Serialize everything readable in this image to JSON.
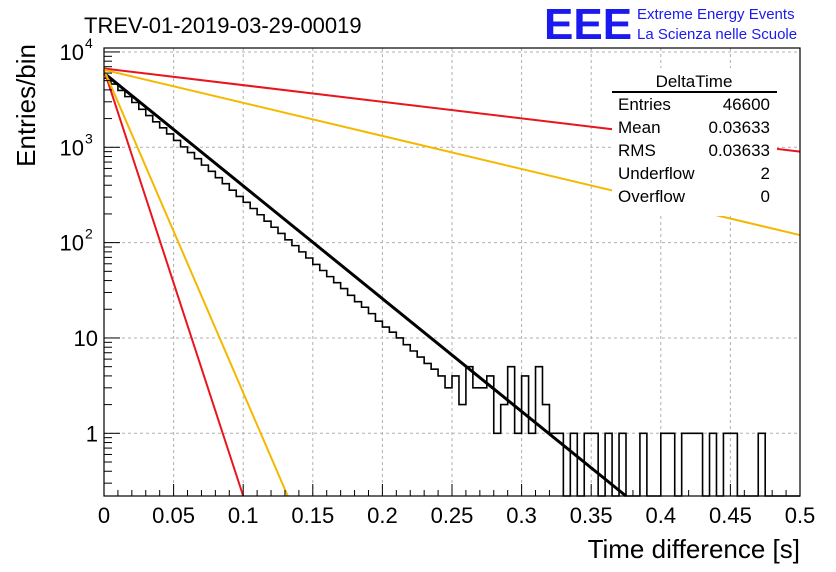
{
  "header": {
    "run_title": "TREV-01-2019-03-29-00019",
    "logo_text": "EEE",
    "org_line1": "Extreme Energy Events",
    "org_line2": "La Scienza nelle Scuole"
  },
  "stats": {
    "title": "DeltaTime",
    "rows": [
      {
        "label": "Entries",
        "value": "46600"
      },
      {
        "label": "Mean",
        "value": "0.03633"
      },
      {
        "label": "RMS",
        "value": "0.03633"
      },
      {
        "label": "Underflow",
        "value": "2"
      },
      {
        "label": "Overflow",
        "value": "0"
      }
    ]
  },
  "colors": {
    "brand": "#1a1aee",
    "red": "#e8161c",
    "orange": "#f5b800",
    "black": "#000000"
  },
  "chart_data": {
    "type": "histogram",
    "title": "TREV-01-2019-03-29-00019",
    "xlabel": "Time difference [s]",
    "ylabel": "Entries/bin",
    "xlim": [
      0,
      0.5
    ],
    "ylim": [
      0.22,
      11000
    ],
    "yscale": "log",
    "grid": true,
    "x_ticks": [
      "0",
      "0.05",
      "0.1",
      "0.15",
      "0.2",
      "0.25",
      "0.3",
      "0.35",
      "0.4",
      "0.45",
      "0.5"
    ],
    "y_ticks": [
      "1",
      "10",
      "10²",
      "10³",
      "10⁴"
    ],
    "bin_width": 0.005,
    "histogram": {
      "name": "DeltaTime",
      "bin_counts": [
        5300,
        4600,
        3950,
        3400,
        2950,
        2500,
        2150,
        1850,
        1600,
        1380,
        1180,
        1010,
        880,
        760,
        650,
        560,
        480,
        415,
        355,
        305,
        265,
        228,
        196,
        168,
        145,
        125,
        107,
        93,
        80,
        69,
        59,
        51,
        44,
        38,
        33,
        28,
        24,
        21,
        18,
        15,
        13,
        11.5,
        10,
        8.5,
        7.3,
        6.3,
        5.4,
        4.7,
        4.0,
        3.0,
        4,
        2,
        5,
        3,
        3,
        4,
        1,
        2,
        5,
        1,
        4,
        1,
        5,
        2,
        1,
        1,
        0,
        1,
        0,
        1,
        1,
        0,
        1,
        0,
        1,
        0,
        0,
        1,
        0,
        0,
        1,
        1,
        0,
        1,
        1,
        1,
        0,
        1,
        0,
        1,
        1,
        0,
        0,
        0,
        1,
        0,
        0,
        0,
        0,
        0
      ]
    },
    "fit_lines": [
      {
        "color": "black",
        "x": [
          0,
          0.375
        ],
        "y": [
          6000,
          0.22
        ]
      },
      {
        "color": "red",
        "x": [
          0,
          0.5
        ],
        "y": [
          6700,
          900
        ]
      },
      {
        "color": "red",
        "x": [
          0,
          0.1
        ],
        "y": [
          6500,
          0.22
        ]
      },
      {
        "color": "orange",
        "x": [
          0,
          0.5
        ],
        "y": [
          6500,
          120
        ]
      },
      {
        "color": "orange",
        "x": [
          0,
          0.132
        ],
        "y": [
          6500,
          0.22
        ]
      }
    ]
  }
}
